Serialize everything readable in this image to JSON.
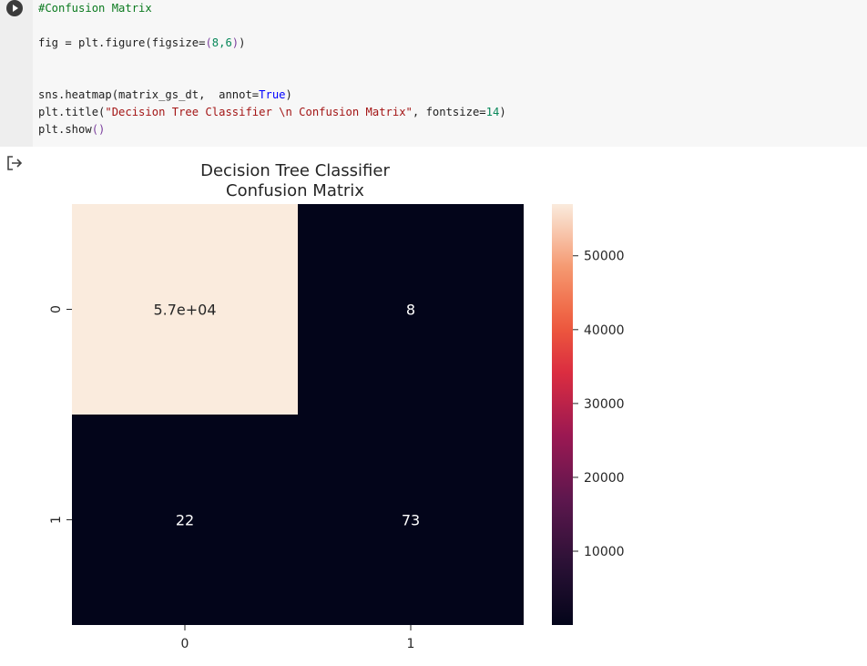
{
  "code_cell": {
    "lines": [
      "#Confusion Matrix",
      "",
      "fig = plt.figure(figsize=(8,6))",
      "",
      "",
      "sns.heatmap(matrix_gs_dt,  annot=True)",
      "plt.title(\"Decision Tree Classifier \\n Confusion Matrix\", fontsize=14)",
      "plt.show()"
    ]
  },
  "icons": {
    "run": "play-circle-icon",
    "output": "output-redirect-icon"
  },
  "chart_data": {
    "type": "heatmap",
    "title": [
      "Decision Tree Classifier",
      "Confusion Matrix"
    ],
    "xticklabels": [
      "0",
      "1"
    ],
    "yticklabels": [
      "0",
      "1"
    ],
    "values": [
      [
        57000,
        8
      ],
      [
        22,
        73
      ]
    ],
    "annotations": [
      [
        "5.7e+04",
        "8"
      ],
      [
        "22",
        "73"
      ]
    ],
    "colorbar": {
      "ticks": [
        "10000",
        "20000",
        "30000",
        "40000",
        "50000"
      ],
      "vmin": 8,
      "vmax": 57000,
      "colormap": "rocket"
    },
    "colors": {
      "high": "#faebdd",
      "low": "#03051a"
    }
  }
}
